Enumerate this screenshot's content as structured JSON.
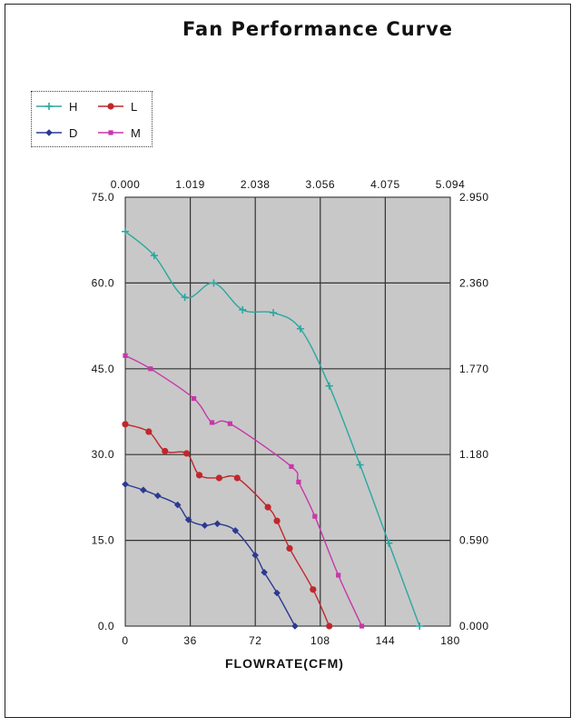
{
  "chart_data": {
    "type": "line",
    "title": "Fan Performance Curve",
    "xlabel": "FLOWRATE(CFM)",
    "ylabel": "",
    "xlim": [
      0,
      180
    ],
    "ylim": [
      0,
      75
    ],
    "x_ticks": [
      "0",
      "36",
      "72",
      "108",
      "144",
      "180"
    ],
    "y_ticks": [
      "0.0",
      "15.0",
      "30.0",
      "45.0",
      "60.0",
      "75.0"
    ],
    "top_axis_ticks": [
      "0.000",
      "1.019",
      "2.038",
      "3.056",
      "4.075",
      "5.094"
    ],
    "right_axis_ticks": [
      "0.000",
      "0.590",
      "1.180",
      "1.770",
      "2.360",
      "2.950"
    ],
    "grid": true,
    "legend_position": "top-left",
    "series": [
      {
        "name": "H",
        "color": "#2aa7a0",
        "marker": "plus",
        "x": [
          0,
          16,
          33,
          49,
          65,
          82,
          97,
          113,
          130,
          146,
          163
        ],
        "y": [
          69,
          64.8,
          57.5,
          60,
          55.3,
          54.8,
          52,
          42,
          28.2,
          14.5,
          0
        ]
      },
      {
        "name": "L",
        "color": "#c0272d",
        "marker": "circle",
        "x": [
          0,
          13,
          22,
          34,
          41,
          52,
          62,
          79,
          84,
          91,
          104,
          113
        ],
        "y": [
          35.3,
          34,
          30.6,
          30.2,
          26.4,
          25.9,
          25.9,
          20.8,
          18.4,
          13.6,
          6.4,
          0
        ]
      },
      {
        "name": "D",
        "color": "#2c3a92",
        "marker": "diamond",
        "x": [
          0,
          10,
          18,
          29,
          35,
          44,
          51,
          61,
          72,
          77,
          84,
          94
        ],
        "y": [
          24.8,
          23.8,
          22.8,
          21.2,
          18.6,
          17.6,
          17.9,
          16.7,
          12.4,
          9.4,
          5.8,
          0
        ]
      },
      {
        "name": "M",
        "color": "#c837a9",
        "marker": "square",
        "x": [
          0,
          14,
          38,
          48,
          58,
          92,
          96,
          105,
          118,
          131
        ],
        "y": [
          47.3,
          45,
          39.8,
          35.6,
          35.4,
          27.9,
          25.2,
          19.2,
          8.9,
          0
        ]
      }
    ]
  }
}
